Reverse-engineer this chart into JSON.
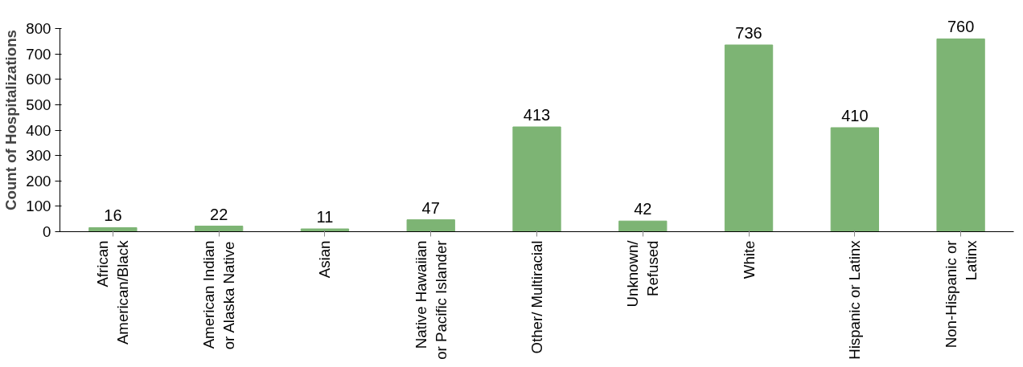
{
  "chart_data": {
    "type": "bar",
    "ylabel": "Count of Hospitalizations",
    "categories": [
      "African\nAmerican/Black",
      "American Indian\nor Alaska Native",
      "Asian",
      "Native Hawaiian\nor Pacific Islander",
      "Other/ Multiracial",
      "Unknown/\nRefused",
      "White",
      "Hispanic or Latinx",
      "Non-Hispanic or\nLatinx"
    ],
    "values": [
      16,
      22,
      11,
      47,
      413,
      42,
      736,
      410,
      760
    ],
    "color": "#7db474",
    "ylim": [
      0,
      800
    ],
    "yticks": [
      0,
      100,
      200,
      300,
      400,
      500,
      600,
      700,
      800
    ],
    "grid": false,
    "data_labels": true
  }
}
